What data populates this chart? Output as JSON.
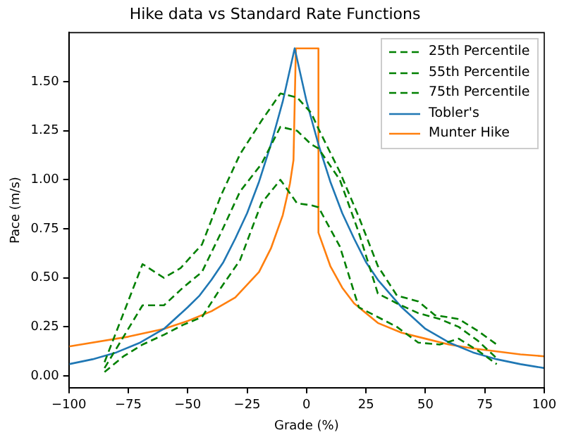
{
  "chart_data": {
    "type": "line",
    "title": "Hike data vs Standard Rate Functions",
    "xlabel": "Grade (%)",
    "ylabel": "Pace (m/s)",
    "xlim": [
      -100,
      100
    ],
    "ylim": [
      -0.06,
      1.75
    ],
    "xticks": [
      {
        "value": -100,
        "label": "−100"
      },
      {
        "value": -75,
        "label": "−75"
      },
      {
        "value": -50,
        "label": "−50"
      },
      {
        "value": -25,
        "label": "−25"
      },
      0,
      25,
      50,
      75,
      100
    ],
    "yticks": [
      {
        "value": 0,
        "label": "0.00"
      },
      {
        "value": 0.25,
        "label": "0.25"
      },
      {
        "value": 0.5,
        "label": "0.50"
      },
      {
        "value": 0.75,
        "label": "0.75"
      },
      {
        "value": 1,
        "label": "1.00"
      },
      {
        "value": 1.25,
        "label": "1.25"
      },
      {
        "value": 1.5,
        "label": "1.50"
      }
    ],
    "grid": false,
    "legend": "top right",
    "marker": "none",
    "series": [
      {
        "name": "25th Percentile",
        "color": "#008000",
        "line_style": "dashed",
        "x": [
          -85,
          -77,
          -69,
          -60,
          -52,
          -44,
          -36,
          -28,
          -19,
          -11,
          -4,
          2,
          5,
          14,
          22,
          30,
          38,
          47,
          56,
          64,
          72,
          80
        ],
        "values": [
          0.02,
          0.1,
          0.16,
          0.21,
          0.26,
          0.3,
          0.45,
          0.59,
          0.88,
          1.0,
          0.88,
          0.87,
          0.86,
          0.66,
          0.35,
          0.3,
          0.25,
          0.17,
          0.16,
          0.19,
          0.13,
          0.06
        ]
      },
      {
        "name": "55th Percentile",
        "color": "#008000",
        "line_style": "dashed",
        "x": [
          -85,
          -69,
          -60,
          -52,
          -44,
          -36,
          -28,
          -19,
          -11,
          -4,
          2,
          5,
          14,
          22,
          30,
          38,
          47,
          56,
          64,
          72,
          80
        ],
        "values": [
          0.04,
          0.36,
          0.36,
          0.45,
          0.53,
          0.73,
          0.94,
          1.08,
          1.27,
          1.25,
          1.18,
          1.16,
          1.0,
          0.73,
          0.42,
          0.37,
          0.32,
          0.29,
          0.25,
          0.18,
          0.09
        ]
      },
      {
        "name": "75th Percentile",
        "color": "#008000",
        "line_style": "dashed",
        "x": [
          -85,
          -69,
          -60,
          -53,
          -44,
          -36,
          -28,
          -19,
          -11,
          -4,
          2,
          5,
          14,
          22,
          30,
          38,
          47,
          54,
          64,
          72,
          80
        ],
        "values": [
          0.07,
          0.57,
          0.5,
          0.55,
          0.67,
          0.92,
          1.13,
          1.3,
          1.44,
          1.42,
          1.34,
          1.26,
          1.04,
          0.81,
          0.56,
          0.41,
          0.38,
          0.31,
          0.29,
          0.23,
          0.16
        ]
      },
      {
        "name": "Tobler's",
        "color": "#1f77b4",
        "line_style": "solid",
        "x": [
          -100,
          -90,
          -80,
          -70,
          -60,
          -50,
          -45,
          -40,
          -35,
          -30,
          -25,
          -20,
          -15,
          -10,
          -5,
          0,
          5,
          10,
          15,
          20,
          25,
          30,
          40,
          50,
          60,
          70,
          80,
          90,
          100
        ],
        "values": [
          0.06,
          0.085,
          0.12,
          0.17,
          0.24,
          0.35,
          0.41,
          0.49,
          0.58,
          0.7,
          0.83,
          0.99,
          1.18,
          1.4,
          1.67,
          1.4,
          1.18,
          0.99,
          0.83,
          0.7,
          0.58,
          0.49,
          0.35,
          0.24,
          0.17,
          0.12,
          0.085,
          0.06,
          0.04
        ]
      },
      {
        "name": "Munter Hike",
        "color": "#ff7f0e",
        "line_style": "solid",
        "x": [
          -100,
          -75,
          -60,
          -50,
          -40,
          -30,
          -20,
          -15,
          -10,
          -7,
          -5.5,
          -4.5,
          5,
          5,
          10,
          15,
          20,
          30,
          40,
          50,
          60,
          70,
          80,
          90,
          100
        ],
        "values": [
          0.15,
          0.2,
          0.24,
          0.28,
          0.33,
          0.4,
          0.53,
          0.65,
          0.82,
          0.98,
          1.1,
          1.67,
          1.67,
          0.73,
          0.56,
          0.45,
          0.37,
          0.27,
          0.22,
          0.19,
          0.16,
          0.14,
          0.125,
          0.11,
          0.1
        ]
      }
    ]
  }
}
